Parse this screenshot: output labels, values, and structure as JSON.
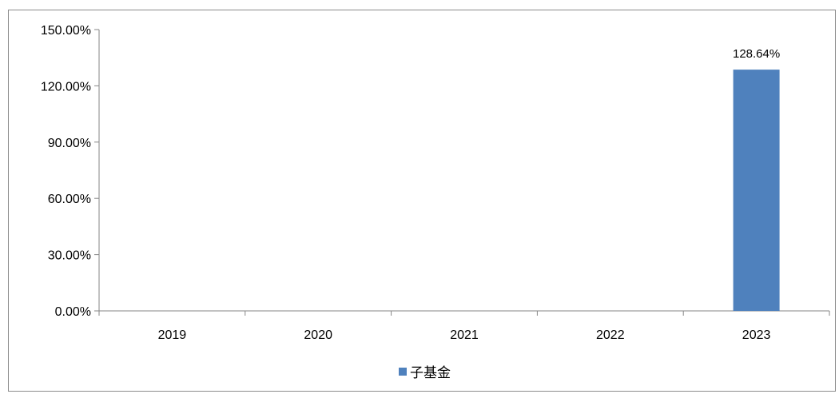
{
  "chart_data": {
    "type": "bar",
    "categories": [
      "2019",
      "2020",
      "2021",
      "2022",
      "2023"
    ],
    "series": [
      {
        "name": "子基金",
        "values": [
          0,
          0,
          0,
          0,
          128.64
        ],
        "color": "#4f81bd",
        "data_labels": [
          "",
          "",
          "",
          "",
          "128.64%"
        ]
      }
    ],
    "y_ticks": [
      "0.00%",
      "30.00%",
      "60.00%",
      "90.00%",
      "120.00%",
      "150.00%"
    ],
    "y_tick_values": [
      0,
      30,
      60,
      90,
      120,
      150
    ],
    "ylim": [
      0,
      150
    ],
    "grid": false,
    "legend_position": "bottom"
  }
}
